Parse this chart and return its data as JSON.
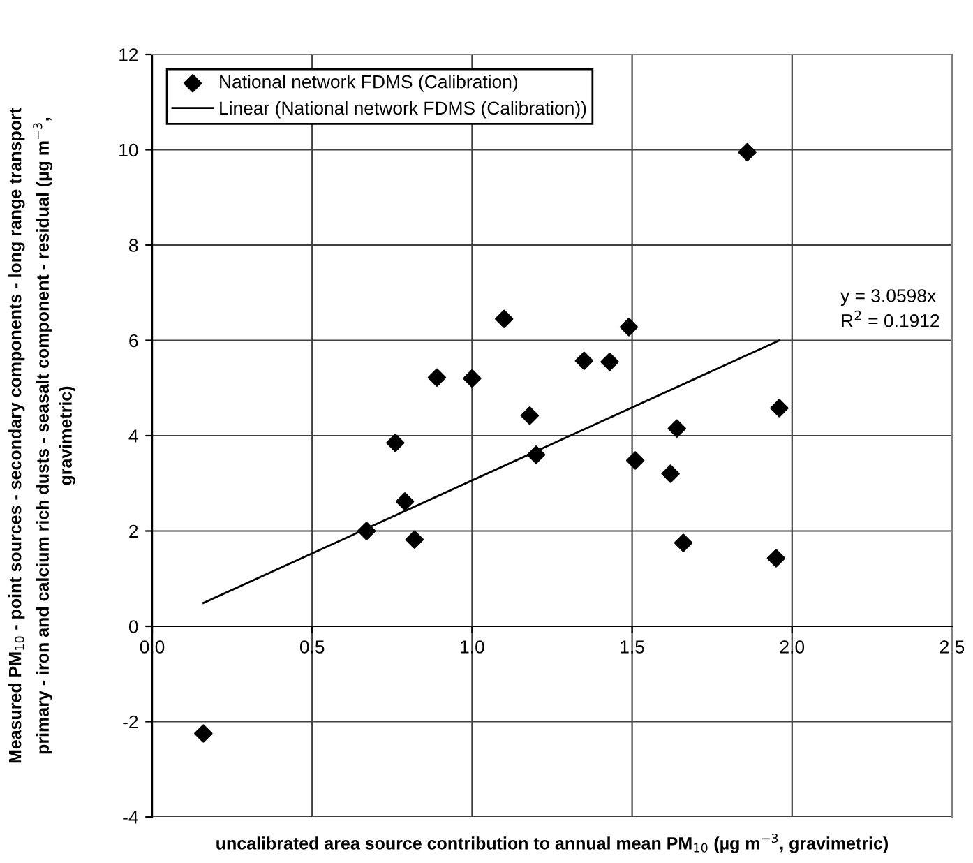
{
  "chart_data": {
    "type": "scatter",
    "xlabel": "uncalibrated area source contribution to annual mean PM$_{10}$ (µg m$^{−3}$, gravimetric)",
    "ylabel": "Measured PM$_{10}$ - point sources - secondary components - long range transport\nprimary - iron and calcium rich dusts - seasalt component - residual (µg m$^{−3}$,\ngravimetric)",
    "xlim": [
      0,
      2.5
    ],
    "xticks": [
      {
        "value": 0,
        "label": "0.0"
      },
      {
        "value": 0.5,
        "label": "0.5"
      },
      {
        "value": 1,
        "label": "1.0"
      },
      {
        "value": 1.5,
        "label": "1.5"
      },
      {
        "value": 2,
        "label": "2.0"
      },
      {
        "value": 2.5,
        "label": "2.5"
      }
    ],
    "ylim": [
      -4,
      12
    ],
    "yticks": [
      -4,
      -2,
      0,
      2,
      4,
      6,
      8,
      10,
      12
    ],
    "grid": true,
    "legend": "top left",
    "annotations": [
      "y = 3.0598x\nR$^{2}$ = 0.1912"
    ],
    "series": [
      {
        "name": "National network FDMS (Calibration)",
        "color": "#000000",
        "marker": "diamond",
        "x": [
          0.16,
          0.67,
          0.76,
          0.79,
          0.82,
          0.89,
          1.0,
          1.1,
          1.18,
          1.2,
          1.35,
          1.43,
          1.49,
          1.51,
          1.62,
          1.64,
          1.66,
          1.86,
          1.95,
          1.96
        ],
        "values": [
          -2.25,
          2.0,
          3.85,
          2.62,
          1.82,
          5.22,
          5.2,
          6.45,
          4.42,
          3.6,
          5.57,
          5.55,
          6.28,
          3.48,
          3.2,
          4.15,
          1.75,
          9.95,
          1.43,
          4.58
        ]
      },
      {
        "name": "Linear (National network FDMS (Calibration))",
        "type": "line",
        "color": "#000000",
        "line_style": "solid",
        "x": [
          0.16,
          1.96
        ],
        "values": [
          0.49,
          6.0
        ]
      }
    ]
  }
}
